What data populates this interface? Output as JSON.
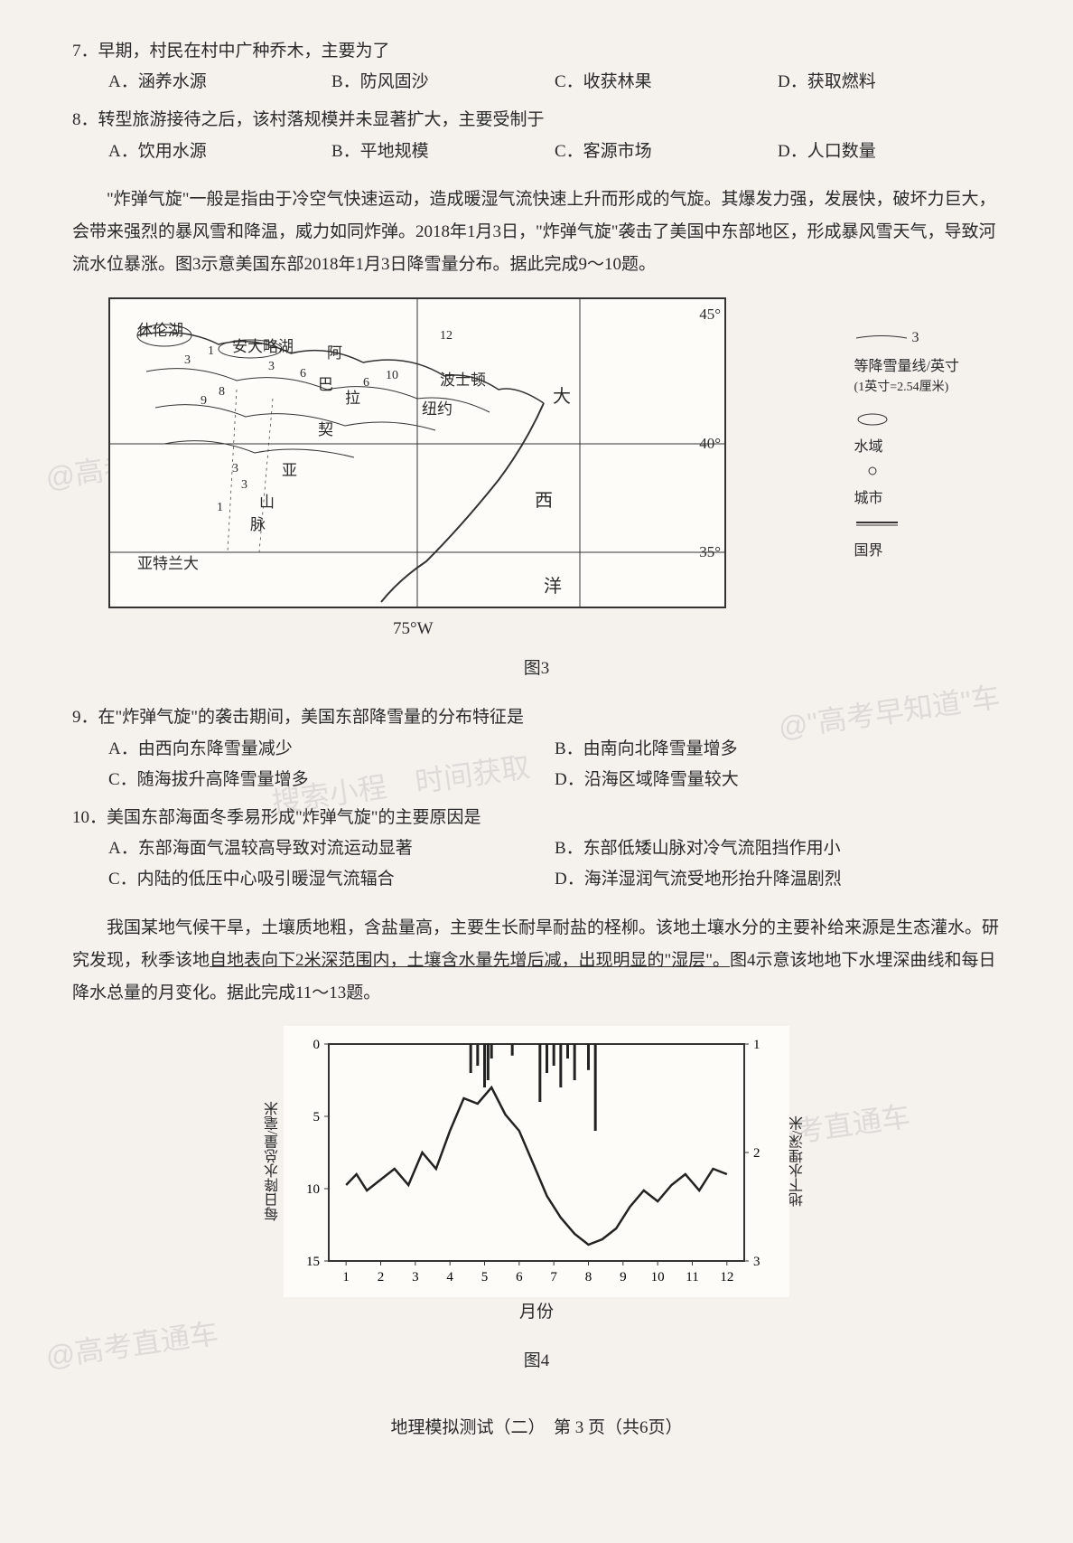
{
  "q7": {
    "text": "7．早期，村民在村中广种乔木，主要为了",
    "opts": {
      "A": "A．涵养水源",
      "B": "B．防风固沙",
      "C": "C．收获林果",
      "D": "D．获取燃料"
    }
  },
  "q8": {
    "text": "8．转型旅游接待之后，该村落规模并未显著扩大，主要受制于",
    "opts": {
      "A": "A．饮用水源",
      "B": "B．平地规模",
      "C": "C．客源市场",
      "D": "D．人口数量"
    }
  },
  "passage1": "\"炸弹气旋\"一般是指由于冷空气快速运动，造成暖湿气流快速上升而形成的气旋。其爆发力强，发展快，破坏力巨大，会带来强烈的暴风雪和降温，威力如同炸弹。2018年1月3日，\"炸弹气旋\"袭击了美国中东部地区，形成暴风雪天气，导致河流水位暴涨。图3示意美国东部2018年1月3日降雪量分布。据此完成9～10题。",
  "map": {
    "labels": {
      "lake": "休伦湖",
      "erie": "安大略湖",
      "appalachian": "阿",
      "appalachian2": "巴",
      "appalachian3": "拉",
      "appalachian4": "契",
      "appalachian5": "亚",
      "mountain": "山",
      "range": "脉",
      "atlanta": "亚特兰大",
      "newyork": "纽约",
      "boston": "波士顿",
      "atlantic1": "大",
      "atlantic2": "西",
      "atlantic3": "洋",
      "lat45": "45°",
      "lat40": "40°",
      "lat35": "35°",
      "lon75": "75°W"
    },
    "contour_values": [
      "1",
      "3",
      "6",
      "8",
      "9",
      "10",
      "3",
      "6",
      "1",
      "3",
      "3",
      "12"
    ],
    "legend": {
      "contour_label": "等降雪量线/英寸",
      "contour_note": "(1英寸=2.54厘米)",
      "water": "水域",
      "city": "城市",
      "border": "国界",
      "contour_sample": "3"
    },
    "caption": "图3"
  },
  "q9": {
    "text": "9．在\"炸弹气旋\"的袭击期间，美国东部降雪量的分布特征是",
    "opts": {
      "A": "A．由西向东降雪量减少",
      "B": "B．由南向北降雪量增多",
      "C": "C．随海拔升高降雪量增多",
      "D": "D．沿海区域降雪量较大"
    }
  },
  "q10": {
    "text": "10．美国东部海面冬季易形成\"炸弹气旋\"的主要原因是",
    "opts": {
      "A": "A．东部海面气温较高导致对流运动显著",
      "B": "B．东部低矮山脉对冷气流阻挡作用小",
      "C": "C．内陆的低压中心吸引暖湿气流辐合",
      "D": "D．海洋湿润气流受地形抬升降温剧烈"
    }
  },
  "passage2_pre": "我国某地气候干旱，土壤质地粗，含盐量高，主要生长耐旱耐盐的柽柳。该地土壤水分的主要补给来源是生态灌水。研究发现，秋季该地",
  "passage2_underline": "自地表向下2米深范围内，土壤含水量先增后减，出现明显的\"湿层\"。",
  "passage2_post": "图4示意该地地下水埋深曲线和每日降水总量的月变化。据此完成11～13题。",
  "chart": {
    "y1_label": "每日降水总量/毫米",
    "y2_label": "地下水埋深/米",
    "x_label": "月份",
    "y1_ticks": [
      "0",
      "5",
      "10",
      "15"
    ],
    "y2_ticks": [
      "1",
      "2",
      "3"
    ],
    "x_ticks": [
      "1",
      "2",
      "3",
      "4",
      "5",
      "6",
      "7",
      "8",
      "9",
      "10",
      "11",
      "12"
    ],
    "caption": "图4",
    "line_data": [
      {
        "m": 1,
        "v": 2.3
      },
      {
        "m": 1.3,
        "v": 2.2
      },
      {
        "m": 1.6,
        "v": 2.35
      },
      {
        "m": 2,
        "v": 2.25
      },
      {
        "m": 2.4,
        "v": 2.15
      },
      {
        "m": 2.8,
        "v": 2.3
      },
      {
        "m": 3.2,
        "v": 2.0
      },
      {
        "m": 3.6,
        "v": 2.15
      },
      {
        "m": 4,
        "v": 1.8
      },
      {
        "m": 4.4,
        "v": 1.5
      },
      {
        "m": 4.8,
        "v": 1.55
      },
      {
        "m": 5.2,
        "v": 1.4
      },
      {
        "m": 5.6,
        "v": 1.65
      },
      {
        "m": 6,
        "v": 1.8
      },
      {
        "m": 6.4,
        "v": 2.1
      },
      {
        "m": 6.8,
        "v": 2.4
      },
      {
        "m": 7.2,
        "v": 2.6
      },
      {
        "m": 7.6,
        "v": 2.75
      },
      {
        "m": 8,
        "v": 2.85
      },
      {
        "m": 8.4,
        "v": 2.8
      },
      {
        "m": 8.8,
        "v": 2.7
      },
      {
        "m": 9.2,
        "v": 2.5
      },
      {
        "m": 9.6,
        "v": 2.35
      },
      {
        "m": 10,
        "v": 2.45
      },
      {
        "m": 10.4,
        "v": 2.3
      },
      {
        "m": 10.8,
        "v": 2.2
      },
      {
        "m": 11.2,
        "v": 2.35
      },
      {
        "m": 11.6,
        "v": 2.15
      },
      {
        "m": 12,
        "v": 2.2
      }
    ],
    "bar_data": [
      {
        "m": 4.6,
        "v": 2
      },
      {
        "m": 4.8,
        "v": 1.5
      },
      {
        "m": 5,
        "v": 3
      },
      {
        "m": 5.1,
        "v": 2.5
      },
      {
        "m": 5.2,
        "v": 1
      },
      {
        "m": 5.8,
        "v": 0.8
      },
      {
        "m": 6.6,
        "v": 4
      },
      {
        "m": 6.8,
        "v": 2
      },
      {
        "m": 7,
        "v": 1.5
      },
      {
        "m": 7.2,
        "v": 3
      },
      {
        "m": 7.4,
        "v": 1
      },
      {
        "m": 7.6,
        "v": 2.5
      },
      {
        "m": 8,
        "v": 1.8
      },
      {
        "m": 8.2,
        "v": 6
      }
    ]
  },
  "watermarks": {
    "w1": "@高考直通",
    "w2": "@\"高考早知道\"车",
    "w3": "搜索小程　时间获取",
    "w4": "@高考直通车",
    "w5": "@高考直通车"
  },
  "footer": "地理模拟测试（二）　第 3 页（共6页）"
}
